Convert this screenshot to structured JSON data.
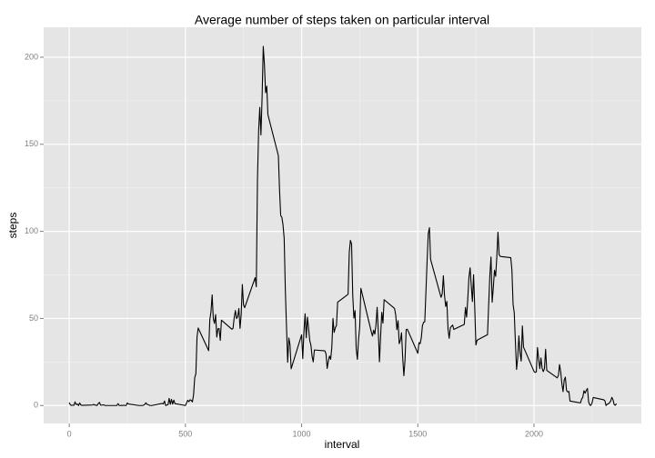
{
  "chart_data": {
    "type": "line",
    "title": "Average number of steps taken on particular interval",
    "x_label": "interval",
    "y_label": "steps",
    "x": [
      0,
      5,
      10,
      15,
      20,
      25,
      30,
      35,
      40,
      45,
      50,
      55,
      100,
      105,
      110,
      115,
      120,
      125,
      130,
      135,
      140,
      145,
      150,
      155,
      200,
      205,
      210,
      215,
      220,
      225,
      230,
      235,
      240,
      245,
      250,
      255,
      300,
      305,
      310,
      315,
      320,
      325,
      330,
      335,
      340,
      345,
      350,
      355,
      400,
      405,
      410,
      415,
      420,
      425,
      430,
      435,
      440,
      445,
      450,
      455,
      500,
      505,
      510,
      515,
      520,
      525,
      530,
      535,
      540,
      545,
      550,
      555,
      600,
      605,
      610,
      615,
      620,
      625,
      630,
      635,
      640,
      645,
      650,
      655,
      700,
      705,
      710,
      715,
      720,
      725,
      730,
      735,
      740,
      745,
      750,
      755,
      800,
      805,
      810,
      815,
      820,
      825,
      830,
      835,
      840,
      845,
      850,
      855,
      900,
      905,
      910,
      915,
      920,
      925,
      930,
      935,
      940,
      945,
      950,
      955,
      1000,
      1005,
      1010,
      1015,
      1020,
      1025,
      1030,
      1035,
      1040,
      1045,
      1050,
      1055,
      1100,
      1105,
      1110,
      1115,
      1120,
      1125,
      1130,
      1135,
      1140,
      1145,
      1150,
      1155,
      1200,
      1205,
      1210,
      1215,
      1220,
      1225,
      1230,
      1235,
      1240,
      1245,
      1250,
      1255,
      1300,
      1305,
      1310,
      1315,
      1320,
      1325,
      1330,
      1335,
      1340,
      1345,
      1350,
      1355,
      1400,
      1405,
      1410,
      1415,
      1420,
      1425,
      1430,
      1435,
      1440,
      1445,
      1450,
      1455,
      1500,
      1505,
      1510,
      1515,
      1520,
      1525,
      1530,
      1535,
      1540,
      1545,
      1550,
      1555,
      1600,
      1605,
      1610,
      1615,
      1620,
      1625,
      1630,
      1635,
      1640,
      1645,
      1650,
      1655,
      1700,
      1705,
      1710,
      1715,
      1720,
      1725,
      1730,
      1735,
      1740,
      1745,
      1750,
      1755,
      1800,
      1805,
      1810,
      1815,
      1820,
      1825,
      1830,
      1835,
      1840,
      1845,
      1850,
      1855,
      1900,
      1905,
      1910,
      1915,
      1920,
      1925,
      1930,
      1935,
      1940,
      1945,
      1950,
      1955,
      2000,
      2005,
      2010,
      2015,
      2020,
      2025,
      2030,
      2035,
      2040,
      2045,
      2050,
      2055,
      2100,
      2105,
      2110,
      2115,
      2120,
      2125,
      2130,
      2135,
      2140,
      2145,
      2150,
      2155,
      2200,
      2205,
      2210,
      2215,
      2220,
      2225,
      2230,
      2235,
      2240,
      2245,
      2250,
      2255,
      2300,
      2305,
      2310,
      2315,
      2320,
      2325,
      2330,
      2335,
      2340,
      2345,
      2350,
      2355
    ],
    "series": [
      {
        "color": "#000000",
        "values": [
          1.7,
          0.3,
          0.1,
          0.2,
          0.1,
          2.1,
          0.5,
          0.9,
          0,
          1.5,
          0.3,
          0.1,
          0.3,
          0.7,
          0.2,
          0.3,
          0,
          1.1,
          1.8,
          0.2,
          0.2,
          0.4,
          0.3,
          0,
          0,
          0,
          1.1,
          0,
          0,
          0.1,
          0,
          0.2,
          0,
          0,
          1.5,
          0.9,
          0,
          0,
          0,
          0,
          0.2,
          0.6,
          1.6,
          0.6,
          0.5,
          0.1,
          0,
          0,
          1.2,
          0.9,
          2.6,
          0,
          0.3,
          0.4,
          4.1,
          0.7,
          3.5,
          0.8,
          3.1,
          1.1,
          0,
          1.6,
          3.0,
          2.2,
          3.3,
          3.0,
          2.1,
          6.1,
          16,
          18.3,
          39.5,
          44.5,
          31.5,
          49.3,
          53.8,
          63.5,
          50,
          47.1,
          52.2,
          39.3,
          44.1,
          44.2,
          37.4,
          49,
          43.8,
          44.4,
          50.5,
          54.5,
          49.9,
          51,
          55.7,
          44.3,
          52.3,
          69.5,
          57.8,
          56.2,
          73.4,
          68.2,
          129.4,
          157.5,
          171.2,
          155.4,
          177.3,
          206.2,
          195.9,
          179.6,
          183.4,
          167,
          143.5,
          124,
          109.1,
          108.1,
          103.7,
          95.96,
          66.2,
          45.2,
          24.8,
          38.8,
          34.98,
          21.1,
          40.6,
          26.98,
          42.4,
          52.7,
          38.9,
          50.8,
          44.3,
          37.4,
          34.7,
          28.3,
          25.1,
          31.9,
          31.4,
          29.7,
          21.3,
          25.5,
          28.4,
          26.5,
          33.4,
          50,
          42,
          44.6,
          46,
          59.3,
          63.9,
          87.7,
          94.8,
          92.8,
          63.4,
          50.2,
          54.5,
          32.4,
          26.5,
          37.7,
          45.1,
          67.3,
          42.3,
          39.9,
          43.3,
          40.98,
          46.2,
          56.4,
          42.8,
          25.1,
          39.9,
          53.5,
          47.3,
          60.8,
          55.75,
          51.96,
          43.6,
          48.7,
          35.5,
          37.5,
          41.8,
          27.5,
          17.1,
          26.1,
          43.6,
          43.8,
          30,
          36.1,
          35.5,
          38.8,
          45.96,
          47.8,
          48.1,
          65.3,
          82.9,
          98.7,
          102.1,
          83.96,
          62.1,
          64.1,
          74.5,
          63.2,
          56.9,
          59.8,
          43.9,
          38.6,
          44.7,
          45.5,
          46.2,
          43.7,
          46.6,
          56.3,
          50.7,
          61.2,
          73.4,
          79.1,
          68.9,
          59.7,
          75.1,
          56.5,
          34.8,
          37.5,
          40.7,
          58,
          74.7,
          85.3,
          59.3,
          67.8,
          77.7,
          74.2,
          85.3,
          99.5,
          86.6,
          85.6,
          84.9,
          77.8,
          58,
          53.4,
          36.3,
          20.7,
          27.4,
          40,
          30.2,
          25.5,
          45.7,
          33.5,
          19.6,
          19,
          19.3,
          33.3,
          26.8,
          21.2,
          27.3,
          21.3,
          19.5,
          21.3,
          32.3,
          20.2,
          15.9,
          17.2,
          23.5,
          19.2,
          12.5,
          8.0,
          14.7,
          16.3,
          8.7,
          7.8,
          8.1,
          2.6,
          1.5,
          3.7,
          4.8,
          8.5,
          7.1,
          8.7,
          9.8,
          2.2,
          0.3,
          0.1,
          1.6,
          4.6,
          3.3,
          2.8,
          0,
          0.8,
          0.96,
          1.6,
          2.6,
          4.7,
          3.3,
          0.6,
          0.2,
          1.1
        ]
      }
    ],
    "xlim": [
      -110,
      2462
    ],
    "xticks": [
      0,
      500,
      1000,
      1500,
      2000
    ],
    "x_minor_ticks": [
      250,
      750,
      1250,
      1750,
      2250
    ],
    "ylim": [
      -10.3,
      217.2
    ],
    "yticks": [
      0,
      50,
      100,
      150,
      200
    ],
    "y_minor_ticks": [
      25,
      75,
      125,
      175
    ],
    "grid": true,
    "panel_color": "#e5e5e5"
  }
}
